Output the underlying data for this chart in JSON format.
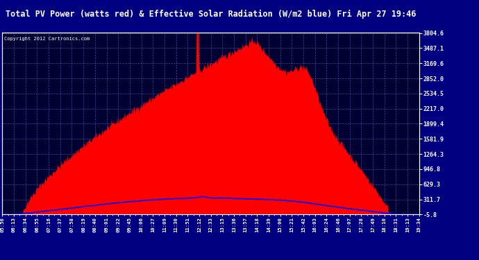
{
  "title": "Total PV Power (watts red) & Effective Solar Radiation (W/m2 blue) Fri Apr 27 19:46",
  "copyright_text": "Copyright 2012 Cartronics.com",
  "ymin": -5.8,
  "ymax": 3804.6,
  "yticks": [
    3804.6,
    3487.1,
    3169.6,
    2852.0,
    2534.5,
    2217.0,
    1899.4,
    1581.9,
    1264.3,
    946.8,
    629.3,
    311.7,
    -5.8
  ],
  "xtick_labels": [
    "05:50",
    "06:13",
    "06:34",
    "06:55",
    "07:16",
    "07:37",
    "07:58",
    "08:19",
    "08:40",
    "09:01",
    "09:22",
    "09:45",
    "10:06",
    "10:27",
    "11:09",
    "11:30",
    "11:51",
    "12:12",
    "12:33",
    "13:15",
    "13:36",
    "13:57",
    "14:18",
    "14:39",
    "15:00",
    "15:21",
    "15:42",
    "16:03",
    "16:24",
    "16:46",
    "17:07",
    "17:28",
    "17:49",
    "18:10",
    "18:31",
    "19:13",
    "19:34"
  ],
  "outer_bg": "#000080",
  "plot_bg": "#000033",
  "fill_color": "#FF0000",
  "line_color": "#0000FF",
  "grid_color": "#4444aa",
  "title_color": "#FFFFFF"
}
